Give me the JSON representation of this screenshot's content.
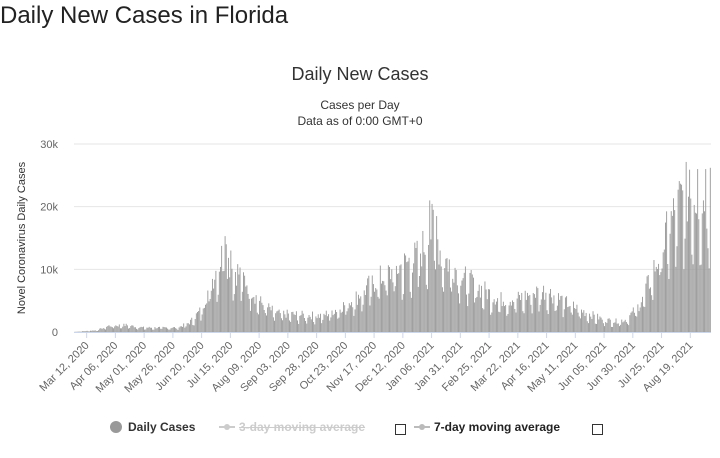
{
  "page": {
    "title": "Daily New Cases in Florida"
  },
  "chart_data": {
    "type": "bar",
    "title": "Daily New Cases",
    "subtitle": [
      "Cases per Day",
      "Data as of 0:00 GMT+0"
    ],
    "ylabel": "Novel Coronavirus Daily Cases",
    "xlabel": "",
    "ylim": [
      0,
      30000
    ],
    "yticks": [
      0,
      10000,
      20000,
      30000
    ],
    "ytick_labels": [
      "0",
      "10k",
      "20k",
      "30k"
    ],
    "xtick_labels": [
      "Mar 12, 2020",
      "Apr 06, 2020",
      "May 01, 2020",
      "May 26, 2020",
      "Jun 20, 2020",
      "Jul 15, 2020",
      "Aug 09, 2020",
      "Sep 03, 2020",
      "Sep 28, 2020",
      "Oct 23, 2020",
      "Nov 17, 2020",
      "Dec 12, 2020",
      "Jan 06, 2021",
      "Jan 31, 2021",
      "Feb 25, 2021",
      "Mar 22, 2021",
      "Apr 16, 2021",
      "May 11, 2021",
      "Jun 05, 2021",
      "Jun 30, 2021",
      "Jul 25, 2021",
      "Aug 19, 2021"
    ],
    "start_date": "2020-03-01",
    "days": 554,
    "series": [
      {
        "name": "Daily Cases",
        "color": "#999999",
        "profile": [
          {
            "day": 0,
            "value": 0
          },
          {
            "day": 20,
            "value": 300
          },
          {
            "day": 30,
            "value": 1000
          },
          {
            "day": 45,
            "value": 1100
          },
          {
            "day": 60,
            "value": 700
          },
          {
            "day": 90,
            "value": 700
          },
          {
            "day": 100,
            "value": 1500
          },
          {
            "day": 110,
            "value": 3500
          },
          {
            "day": 120,
            "value": 8500
          },
          {
            "day": 128,
            "value": 12000
          },
          {
            "day": 135,
            "value": 11000
          },
          {
            "day": 150,
            "value": 8000
          },
          {
            "day": 160,
            "value": 5000
          },
          {
            "day": 175,
            "value": 3000
          },
          {
            "day": 200,
            "value": 2700
          },
          {
            "day": 215,
            "value": 2600
          },
          {
            "day": 230,
            "value": 3800
          },
          {
            "day": 245,
            "value": 5500
          },
          {
            "day": 260,
            "value": 8000
          },
          {
            "day": 280,
            "value": 10000
          },
          {
            "day": 298,
            "value": 12000
          },
          {
            "day": 308,
            "value": 15000
          },
          {
            "day": 312,
            "value": 17000
          },
          {
            "day": 320,
            "value": 12000
          },
          {
            "day": 330,
            "value": 10500
          },
          {
            "day": 340,
            "value": 8500
          },
          {
            "day": 355,
            "value": 6800
          },
          {
            "day": 370,
            "value": 5200
          },
          {
            "day": 385,
            "value": 5300
          },
          {
            "day": 400,
            "value": 6300
          },
          {
            "day": 410,
            "value": 6600
          },
          {
            "day": 425,
            "value": 5000
          },
          {
            "day": 440,
            "value": 3500
          },
          {
            "day": 460,
            "value": 2000
          },
          {
            "day": 470,
            "value": 1700
          },
          {
            "day": 480,
            "value": 2000
          },
          {
            "day": 490,
            "value": 4000
          },
          {
            "day": 500,
            "value": 8000
          },
          {
            "day": 510,
            "value": 13000
          },
          {
            "day": 520,
            "value": 18000
          },
          {
            "day": 528,
            "value": 21500
          },
          {
            "day": 535,
            "value": 22000
          },
          {
            "day": 545,
            "value": 21500
          },
          {
            "day": 553,
            "value": 20000
          }
        ],
        "peaks": [
          {
            "day": 131,
            "value": 15300
          },
          {
            "day": 132,
            "value": 14000
          },
          {
            "day": 136,
            "value": 13000
          },
          {
            "day": 309,
            "value": 21000
          },
          {
            "day": 312,
            "value": 19500
          },
          {
            "day": 315,
            "value": 18500
          },
          {
            "day": 535,
            "value": 25900
          },
          {
            "day": 542,
            "value": 26000
          },
          {
            "day": 549,
            "value": 26000
          },
          {
            "day": 553,
            "value": 26200
          }
        ]
      }
    ],
    "legend": [
      {
        "label": "Daily Cases",
        "visible": true
      },
      {
        "label": "3-day moving average",
        "visible": false
      },
      {
        "label": "7-day moving average",
        "visible": false
      }
    ]
  }
}
